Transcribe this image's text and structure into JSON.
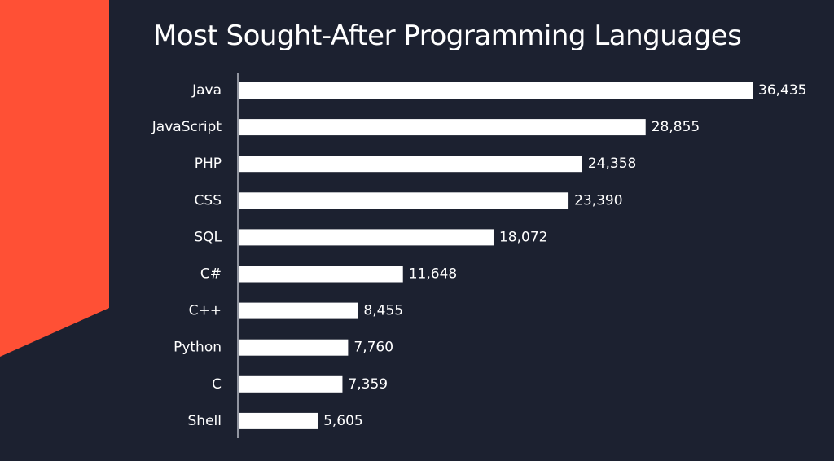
{
  "theme": {
    "background": "#1c2130",
    "accent": "#ff5035",
    "bar_color": "#ffffff",
    "text_color": "#ffffff",
    "axis_color": "#b8bcc6"
  },
  "chart_data": {
    "type": "bar",
    "orientation": "horizontal",
    "title": "Most Sought-After Programming Languages",
    "xlabel": "",
    "ylabel": "",
    "categories": [
      "Java",
      "JavaScript",
      "PHP",
      "CSS",
      "SQL",
      "C#",
      "C++",
      "Python",
      "C",
      "Shell"
    ],
    "values": [
      36435,
      28855,
      24358,
      23390,
      18072,
      11648,
      8455,
      7760,
      7359,
      5605
    ],
    "value_labels": [
      "36,435",
      "28,855",
      "24,358",
      "23,390",
      "18,072",
      "11,648",
      "8,455",
      "7,760",
      "7,359",
      "5,605"
    ],
    "xlim": [
      0,
      36435
    ],
    "grid": false,
    "legend": "none"
  }
}
